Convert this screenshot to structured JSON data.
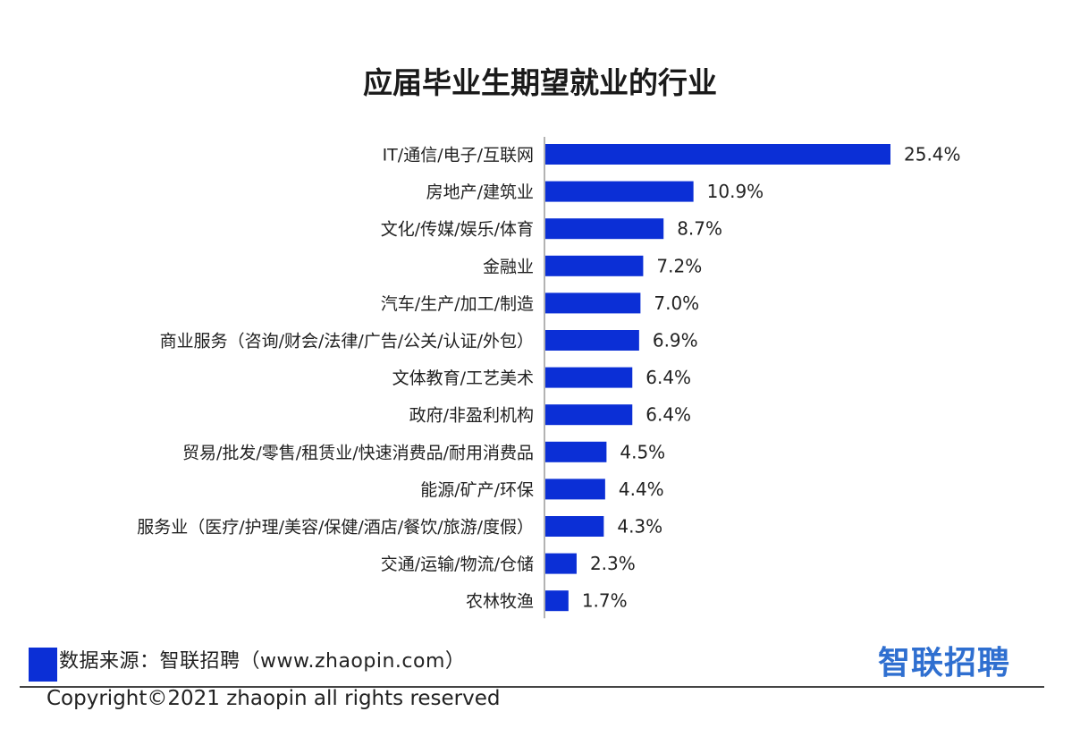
{
  "chart_data": {
    "type": "bar",
    "orientation": "horizontal",
    "title": "应届毕业生期望就业的行业",
    "categories": [
      "IT/通信/电子/互联网",
      "房地产/建筑业",
      "文化/传媒/娱乐/体育",
      "金融业",
      "汽车/生产/加工/制造",
      "商业服务（咨询/财会/法律/广告/公关/认证/外包）",
      "文体教育/工艺美术",
      "政府/非盈利机构",
      "贸易/批发/零售/租赁业/快速消费品/耐用消费品",
      "能源/矿产/环保",
      "服务业（医疗/护理/美容/保健/酒店/餐饮/旅游/度假）",
      "交通/运输/物流/仓储",
      "农林牧渔"
    ],
    "values": [
      25.4,
      10.9,
      8.7,
      7.2,
      7.0,
      6.9,
      6.4,
      6.4,
      4.5,
      4.4,
      4.3,
      2.3,
      1.7
    ],
    "value_labels": [
      "25.4%",
      "10.9%",
      "8.7%",
      "7.2%",
      "7.0%",
      "6.9%",
      "6.4%",
      "6.4%",
      "4.5%",
      "4.4%",
      "4.3%",
      "2.3%",
      "1.7%"
    ],
    "unit": "%",
    "bar_color": "#0b2fd6",
    "grid": false
  },
  "source": "数据来源：智联招聘（www.zhaopin.com）",
  "logo_text": "智联招聘",
  "copyright": "Copyright©2021 zhaopin all rights reserved",
  "colors": {
    "bar": "#0b2fd6",
    "logo": "#2f6fd0"
  }
}
